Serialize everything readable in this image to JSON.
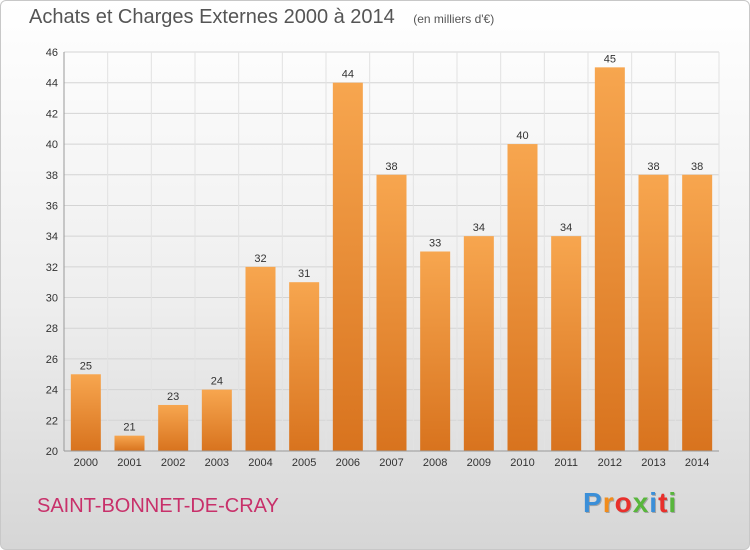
{
  "header": {
    "title": "Achats et Charges Externes 2000 à 2014",
    "unit": "(en milliers d'€)"
  },
  "footer": {
    "place": "SAINT-BONNET-DE-CRAY",
    "logo_text": "Proxiti"
  },
  "colors": {
    "bar_top": "#f7a64f",
    "bar_bottom": "#d8731e",
    "place_text": "#c8306a",
    "logo_letters": [
      "#3b8fd8",
      "#f28c1a",
      "#e8302c",
      "#58b63c",
      "#3b8fd8",
      "#e8302c",
      "#58b63c"
    ]
  },
  "chart_data": {
    "type": "bar",
    "categories": [
      "2000",
      "2001",
      "2002",
      "2003",
      "2004",
      "2005",
      "2006",
      "2007",
      "2008",
      "2009",
      "2010",
      "2011",
      "2012",
      "2013",
      "2014"
    ],
    "values": [
      25,
      21,
      23,
      24,
      32,
      31,
      44,
      38,
      33,
      34,
      40,
      34,
      45,
      38,
      38
    ],
    "ylim": [
      20,
      46
    ],
    "yticks": [
      20,
      22,
      24,
      26,
      28,
      30,
      32,
      34,
      36,
      38,
      40,
      42,
      44,
      46
    ],
    "grid": true,
    "legend": "none"
  }
}
